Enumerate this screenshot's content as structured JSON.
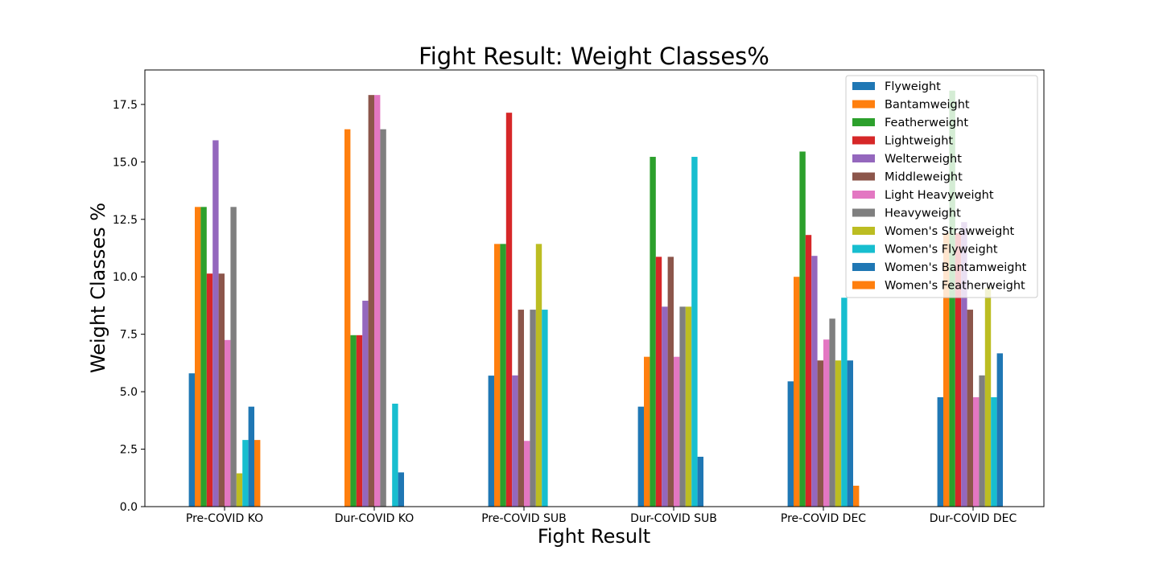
{
  "chart_data": {
    "type": "bar",
    "title": "Fight Result: Weight Classes%",
    "xlabel": "Fight Result",
    "ylabel": "Weight Classes %",
    "ylim": [
      0,
      19
    ],
    "yticks": [
      "0.0",
      "2.5",
      "5.0",
      "7.5",
      "10.0",
      "12.5",
      "15.0",
      "17.5"
    ],
    "grid": false,
    "legend_position": "top-right",
    "categories": [
      "Pre-COVID KO",
      "Dur-COVID KO",
      "Pre-COVID SUB",
      "Dur-COVID SUB",
      "Pre-COVID DEC",
      "Dur-COVID DEC"
    ],
    "series": [
      {
        "name": "Flyweight",
        "color": "#1f77b4",
        "values": [
          5.8,
          0,
          5.7,
          4.35,
          5.45,
          4.76
        ]
      },
      {
        "name": "Bantamweight",
        "color": "#ff7f0e",
        "values": [
          13.04,
          16.42,
          11.43,
          6.52,
          10.0,
          11.9
        ]
      },
      {
        "name": "Featherweight",
        "color": "#2ca02c",
        "values": [
          13.04,
          7.46,
          11.43,
          15.22,
          15.45,
          18.1
        ]
      },
      {
        "name": "Lightweight",
        "color": "#d62728",
        "values": [
          10.14,
          7.46,
          17.14,
          10.87,
          11.82,
          11.9
        ]
      },
      {
        "name": "Welterweight",
        "color": "#9467bd",
        "values": [
          15.94,
          8.96,
          5.71,
          8.7,
          10.91,
          12.38
        ]
      },
      {
        "name": "Middleweight",
        "color": "#8c564b",
        "values": [
          10.14,
          17.91,
          8.57,
          10.87,
          6.36,
          8.57
        ]
      },
      {
        "name": "Light Heavyweight",
        "color": "#e377c2",
        "values": [
          7.25,
          17.91,
          2.86,
          6.52,
          7.27,
          4.76
        ]
      },
      {
        "name": "Heavyweight",
        "color": "#7f7f7f",
        "values": [
          13.04,
          16.42,
          8.57,
          8.7,
          8.18,
          5.71
        ]
      },
      {
        "name": "Women's Strawweight",
        "color": "#bcbd22",
        "values": [
          1.45,
          0,
          11.43,
          8.7,
          6.36,
          9.52
        ]
      },
      {
        "name": "Women's Flyweight",
        "color": "#17becf",
        "values": [
          2.9,
          4.48,
          8.57,
          15.22,
          9.09,
          4.76
        ]
      },
      {
        "name": "Women's Bantamweight",
        "color": "#1f77b4",
        "values": [
          4.35,
          1.49,
          0,
          2.17,
          6.36,
          6.67
        ]
      },
      {
        "name": "Women's Featherweight",
        "color": "#ff7f0e",
        "values": [
          2.9,
          0,
          0,
          0,
          0.91,
          0
        ]
      }
    ]
  }
}
